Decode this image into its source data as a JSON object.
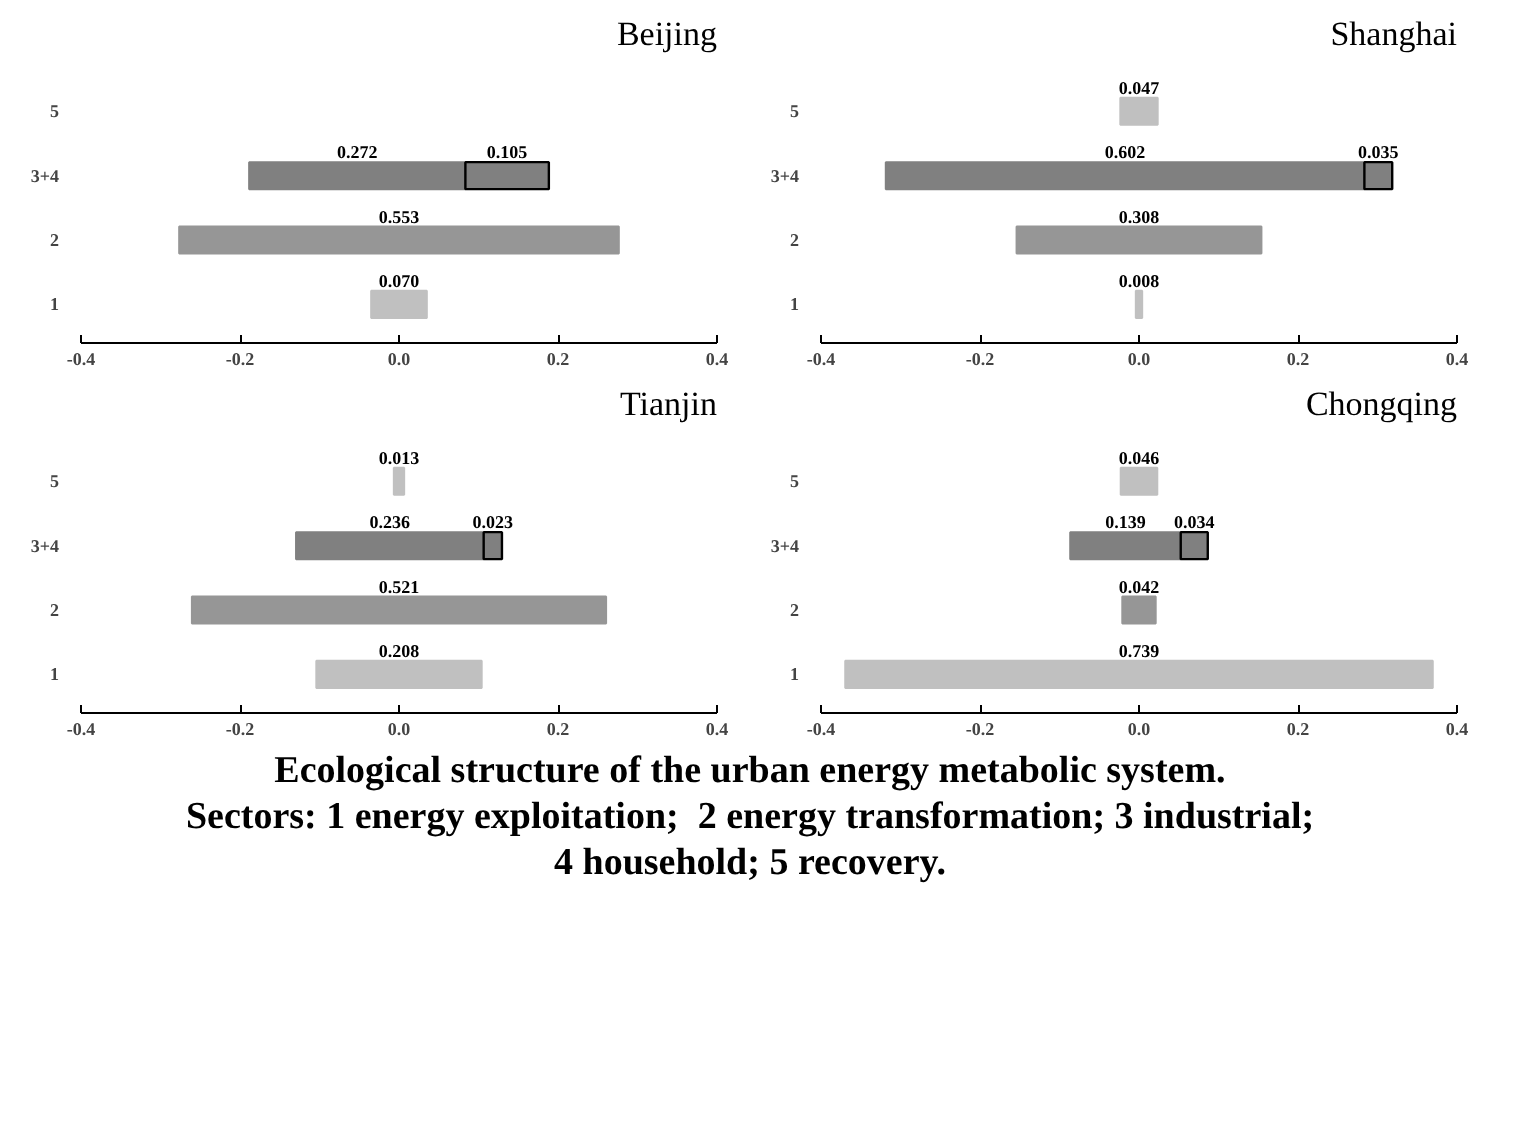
{
  "chart_data": [
    {
      "type": "bar",
      "orientation": "horizontal",
      "title": "Beijing",
      "categories": [
        "5",
        "3+4",
        "2",
        "1"
      ],
      "xlim": [
        -0.4,
        0.4
      ],
      "xticks": [
        {
          "value": -0.4,
          "label": "-0.4"
        },
        {
          "value": -0.2,
          "label": "-0.2"
        },
        {
          "value": 0,
          "label": "0.0"
        },
        {
          "value": 0.2,
          "label": "0.2"
        },
        {
          "value": 0.4,
          "label": "0.4"
        }
      ],
      "series": [
        {
          "values": [
            null,
            0.272,
            0.553,
            0.07
          ],
          "base": [
            null,
            -0.1885,
            -0.2765,
            -0.035
          ],
          "colors": [
            "#c0c0c0",
            "#808080",
            "#969696",
            "#c0c0c0"
          ],
          "value_labels": [
            null,
            "0.272",
            "0.553",
            "0.070"
          ]
        },
        {
          "values": [
            null,
            0.105,
            null,
            null
          ],
          "base": [
            null,
            0.0835,
            null,
            null
          ],
          "color": "#808080",
          "value_labels": [
            null,
            "0.105",
            null,
            null
          ]
        }
      ]
    },
    {
      "type": "bar",
      "orientation": "horizontal",
      "title": "Shanghai",
      "categories": [
        "5",
        "3+4",
        "2",
        "1"
      ],
      "xlim": [
        -0.4,
        0.4
      ],
      "xticks": [
        {
          "value": -0.4,
          "label": "-0.4"
        },
        {
          "value": -0.2,
          "label": "-0.2"
        },
        {
          "value": 0,
          "label": "0.0"
        },
        {
          "value": 0.2,
          "label": "0.2"
        },
        {
          "value": 0.4,
          "label": "0.4"
        }
      ],
      "series": [
        {
          "values": [
            0.047,
            0.602,
            0.308,
            0.008
          ],
          "base": [
            -0.0235,
            -0.3185,
            -0.154,
            -0.004
          ],
          "colors": [
            "#c0c0c0",
            "#808080",
            "#969696",
            "#c0c0c0"
          ],
          "value_labels": [
            "0.047",
            "0.602",
            "0.308",
            "0.008"
          ]
        },
        {
          "values": [
            null,
            0.035,
            null,
            null
          ],
          "base": [
            null,
            0.2835,
            null,
            null
          ],
          "color": "#808080",
          "value_labels": [
            null,
            "0.035",
            null,
            null
          ]
        }
      ]
    },
    {
      "type": "bar",
      "orientation": "horizontal",
      "title": "Tianjin",
      "categories": [
        "5",
        "3+4",
        "2",
        "1"
      ],
      "xlim": [
        -0.4,
        0.4
      ],
      "xticks": [
        {
          "value": -0.4,
          "label": "-0.4"
        },
        {
          "value": -0.2,
          "label": "-0.2"
        },
        {
          "value": 0,
          "label": "0.0"
        },
        {
          "value": 0.2,
          "label": "0.2"
        },
        {
          "value": 0.4,
          "label": "0.4"
        }
      ],
      "series": [
        {
          "values": [
            0.013,
            0.236,
            0.521,
            0.208
          ],
          "base": [
            -0.0065,
            -0.1295,
            -0.2605,
            -0.104
          ],
          "colors": [
            "#c0c0c0",
            "#808080",
            "#969696",
            "#c0c0c0"
          ],
          "value_labels": [
            "0.013",
            "0.236",
            "0.521",
            "0.208"
          ]
        },
        {
          "values": [
            null,
            0.023,
            null,
            null
          ],
          "base": [
            null,
            0.1065,
            null,
            null
          ],
          "color": "#808080",
          "value_labels": [
            null,
            "0.023",
            null,
            null
          ]
        }
      ]
    },
    {
      "type": "bar",
      "orientation": "horizontal",
      "title": "Chongqing",
      "categories": [
        "5",
        "3+4",
        "2",
        "1"
      ],
      "xlim": [
        -0.4,
        0.4
      ],
      "xticks": [
        {
          "value": -0.4,
          "label": "-0.4"
        },
        {
          "value": -0.2,
          "label": "-0.2"
        },
        {
          "value": 0,
          "label": "0.0"
        },
        {
          "value": 0.2,
          "label": "0.2"
        },
        {
          "value": 0.4,
          "label": "0.4"
        }
      ],
      "series": [
        {
          "values": [
            0.046,
            0.139,
            0.042,
            0.739
          ],
          "base": [
            -0.023,
            -0.0865,
            -0.021,
            -0.3695
          ],
          "colors": [
            "#c0c0c0",
            "#808080",
            "#969696",
            "#c0c0c0"
          ],
          "value_labels": [
            "0.046",
            "0.139",
            "0.042",
            "0.739"
          ]
        },
        {
          "values": [
            null,
            0.034,
            null,
            null
          ],
          "base": [
            null,
            0.0525,
            null,
            null
          ],
          "color": "#808080",
          "value_labels": [
            null,
            "0.034",
            null,
            null
          ]
        }
      ],
      "annotations": [
        "Ecological structure of the urban energy metabolic system.",
        "Sectors: 1 energy exploitation;  2 energy transformation; 3 industrial;",
        "4 household; 5 recovery."
      ]
    }
  ]
}
